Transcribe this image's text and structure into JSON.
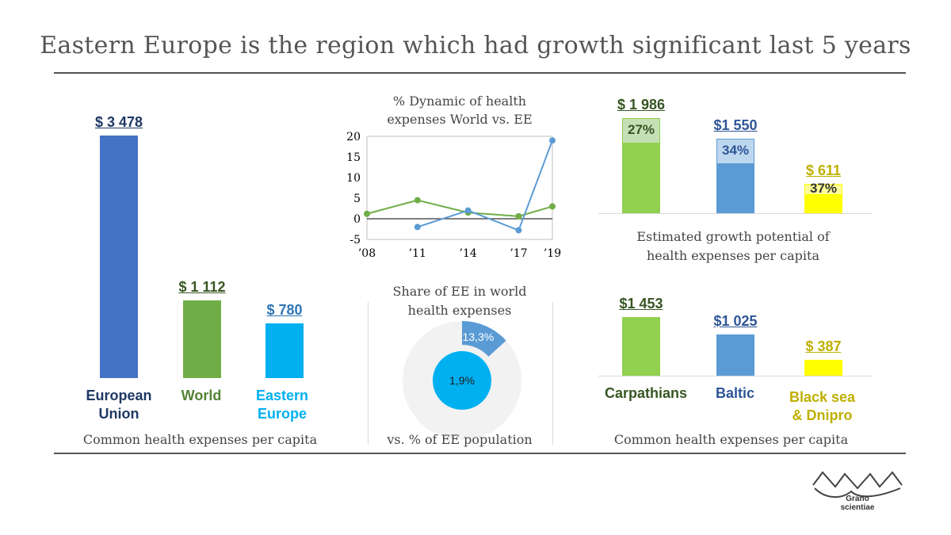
{
  "title": "Eastern Europe is the region which had growth significant last 5 years",
  "colors": {
    "eu": "#4472C4",
    "world": "#70AD47",
    "ee": "#00B0F0",
    "line_world": "#70AD47",
    "line_ee": "#5B9BD5",
    "yellow": "#FFFF00",
    "yellow_light": "#FFFF99",
    "green": "#92D050",
    "green_light": "#C5E0B4",
    "blue": "#5B9BD5",
    "blue_light": "#BDD7EE",
    "donut_ring": "#F2F2F2",
    "donut_center": "#00B0F0"
  },
  "chart_data": [
    {
      "type": "bar",
      "id": "common-expenses-regions",
      "categories": [
        "European Union",
        "World",
        "Eastern Europe"
      ],
      "values": [
        3478,
        1112,
        780
      ],
      "value_labels": [
        "$ 3 478",
        "$ 1 112",
        "$ 780"
      ],
      "category_label_lines": [
        [
          "European",
          "Union"
        ],
        [
          "World"
        ],
        [
          "Eastern",
          "Europe"
        ]
      ],
      "caption": "Common health expenses per capita",
      "ylim": [
        0,
        3478
      ]
    },
    {
      "type": "line",
      "id": "dynamic-world-vs-ee",
      "title_lines": [
        "% Dynamic of health",
        "expenses World vs. EE"
      ],
      "x": [
        "’08",
        "’09",
        "’10",
        "’11",
        "’12",
        "’13",
        "’14",
        "’15",
        "’16",
        "’17",
        "’18",
        "’19"
      ],
      "xtick_labels": [
        "’08",
        "’11",
        "’14",
        "’17",
        "’19"
      ],
      "yticks": [
        20,
        15,
        10,
        5,
        0,
        -5
      ],
      "ylim": [
        -5,
        20
      ],
      "series": [
        {
          "color_key": "line_world",
          "points": [
            [
              0,
              1.2
            ],
            [
              3,
              4.5
            ],
            [
              6,
              1.5
            ],
            [
              9,
              0.6
            ],
            [
              11,
              3.0
            ]
          ]
        },
        {
          "color_key": "line_ee",
          "points": [
            [
              3,
              -2.0
            ],
            [
              6,
              2.0
            ],
            [
              9,
              -2.8
            ],
            [
              11,
              19.0
            ]
          ]
        }
      ]
    },
    {
      "type": "bar",
      "id": "growth-potential",
      "categories": [
        "Carpathians",
        "Baltic",
        "Black sea & Dnipro"
      ],
      "values": [
        1986,
        1550,
        611
      ],
      "value_labels": [
        "$ 1 986",
        "$1 550",
        "$ 611"
      ],
      "growth_share": [
        27,
        34,
        37
      ],
      "growth_labels": [
        "27%",
        "34%",
        "37%"
      ],
      "caption_lines": [
        "Estimated growth potential of",
        "health expenses per capita"
      ],
      "ylim": [
        0,
        1986
      ]
    },
    {
      "type": "pie",
      "id": "ee-share-world",
      "title_lines": [
        "Share of EE in world",
        "health expenses"
      ],
      "outer_value": 13.3,
      "outer_label": "13,3%",
      "inner_value": 1.9,
      "inner_label": "1,9%",
      "caption": "vs. % of EE population"
    },
    {
      "type": "bar",
      "id": "common-expenses-subregions",
      "categories": [
        "Carpathians",
        "Baltic",
        "Black sea & Dnipro"
      ],
      "values": [
        1453,
        1025,
        387
      ],
      "value_labels": [
        "$1 453",
        "$1 025",
        "$ 387"
      ],
      "category_label_lines": [
        [
          "Carpathians"
        ],
        [
          "Baltic"
        ],
        [
          "Black sea",
          "& Dnipro"
        ]
      ],
      "caption": "Common health expenses per capita",
      "ylim": [
        0,
        1453
      ]
    }
  ],
  "logo": {
    "line1": "Grano",
    "line2": "scientiae"
  }
}
